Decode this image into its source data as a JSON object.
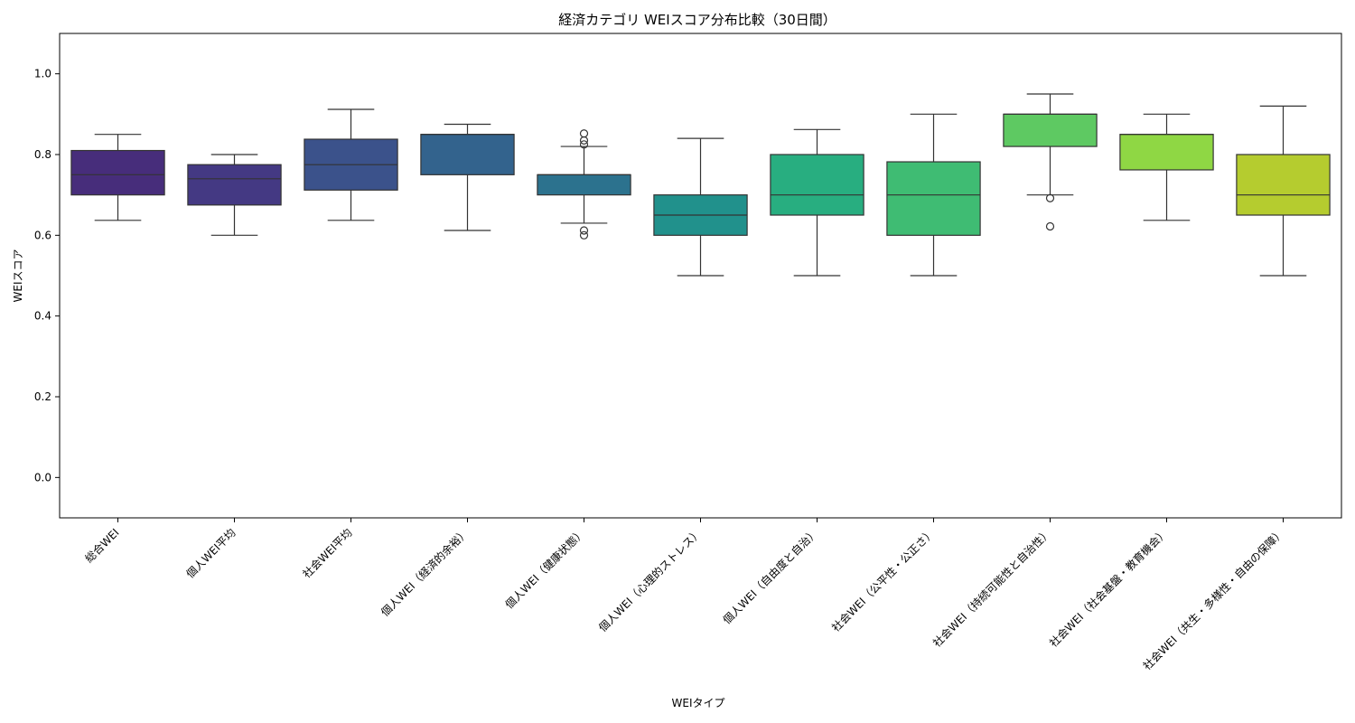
{
  "chart_data": {
    "type": "box",
    "title": "経済カテゴリ WEIスコア分布比較（30日間）",
    "xlabel": "WEIタイプ",
    "ylabel": "WEIスコア",
    "ylim": [
      -0.1,
      1.1
    ],
    "yticks": [
      "0.0",
      "0.2",
      "0.4",
      "0.6",
      "0.8",
      "1.0"
    ],
    "grid": false,
    "categories": [
      "総合WEI",
      "個人WEI平均",
      "社会WEI平均",
      "個人WEI（経済的余裕）",
      "個人WEI（健康状態）",
      "個人WEI（心理的ストレス）",
      "個人WEI（自由度と自治）",
      "社会WEI（公平性・公正さ）",
      "社会WEI（持続可能性と自治性）",
      "社会WEI（社会基盤・教育機会）",
      "社会WEI（共生・多様性・自由の保障）"
    ],
    "boxes": [
      {
        "whisker_low": 0.637,
        "q1": 0.7,
        "median": 0.75,
        "q3": 0.81,
        "whisker_high": 0.85,
        "outliers": [],
        "color": "#472d7b"
      },
      {
        "whisker_low": 0.6,
        "q1": 0.675,
        "median": 0.74,
        "q3": 0.775,
        "whisker_high": 0.8,
        "outliers": [],
        "color": "#443983"
      },
      {
        "whisker_low": 0.637,
        "q1": 0.712,
        "median": 0.775,
        "q3": 0.838,
        "whisker_high": 0.912,
        "outliers": [],
        "color": "#3b528b"
      },
      {
        "whisker_low": 0.612,
        "q1": 0.75,
        "median": 0.85,
        "q3": 0.85,
        "whisker_high": 0.875,
        "outliers": [],
        "color": "#33638d"
      },
      {
        "whisker_low": 0.63,
        "q1": 0.7,
        "median": 0.75,
        "q3": 0.75,
        "whisker_high": 0.82,
        "outliers": [
          0.852,
          0.835,
          0.825,
          0.612,
          0.6
        ],
        "color": "#2c728e"
      },
      {
        "whisker_low": 0.5,
        "q1": 0.6,
        "median": 0.65,
        "q3": 0.7,
        "whisker_high": 0.84,
        "outliers": [],
        "color": "#21918c"
      },
      {
        "whisker_low": 0.5,
        "q1": 0.65,
        "median": 0.7,
        "q3": 0.8,
        "whisker_high": 0.862,
        "outliers": [],
        "color": "#28ae80"
      },
      {
        "whisker_low": 0.5,
        "q1": 0.6,
        "median": 0.7,
        "q3": 0.782,
        "whisker_high": 0.9,
        "outliers": [],
        "color": "#3fbc73"
      },
      {
        "whisker_low": 0.7,
        "q1": 0.82,
        "median": 0.9,
        "q3": 0.9,
        "whisker_high": 0.95,
        "outliers": [
          0.692,
          0.622
        ],
        "color": "#5ec962"
      },
      {
        "whisker_low": 0.637,
        "q1": 0.762,
        "median": 0.85,
        "q3": 0.85,
        "whisker_high": 0.9,
        "outliers": [],
        "color": "#8fd744"
      },
      {
        "whisker_low": 0.5,
        "q1": 0.65,
        "median": 0.7,
        "q3": 0.8,
        "whisker_high": 0.92,
        "outliers": [],
        "color": "#b5cc2f"
      }
    ]
  }
}
